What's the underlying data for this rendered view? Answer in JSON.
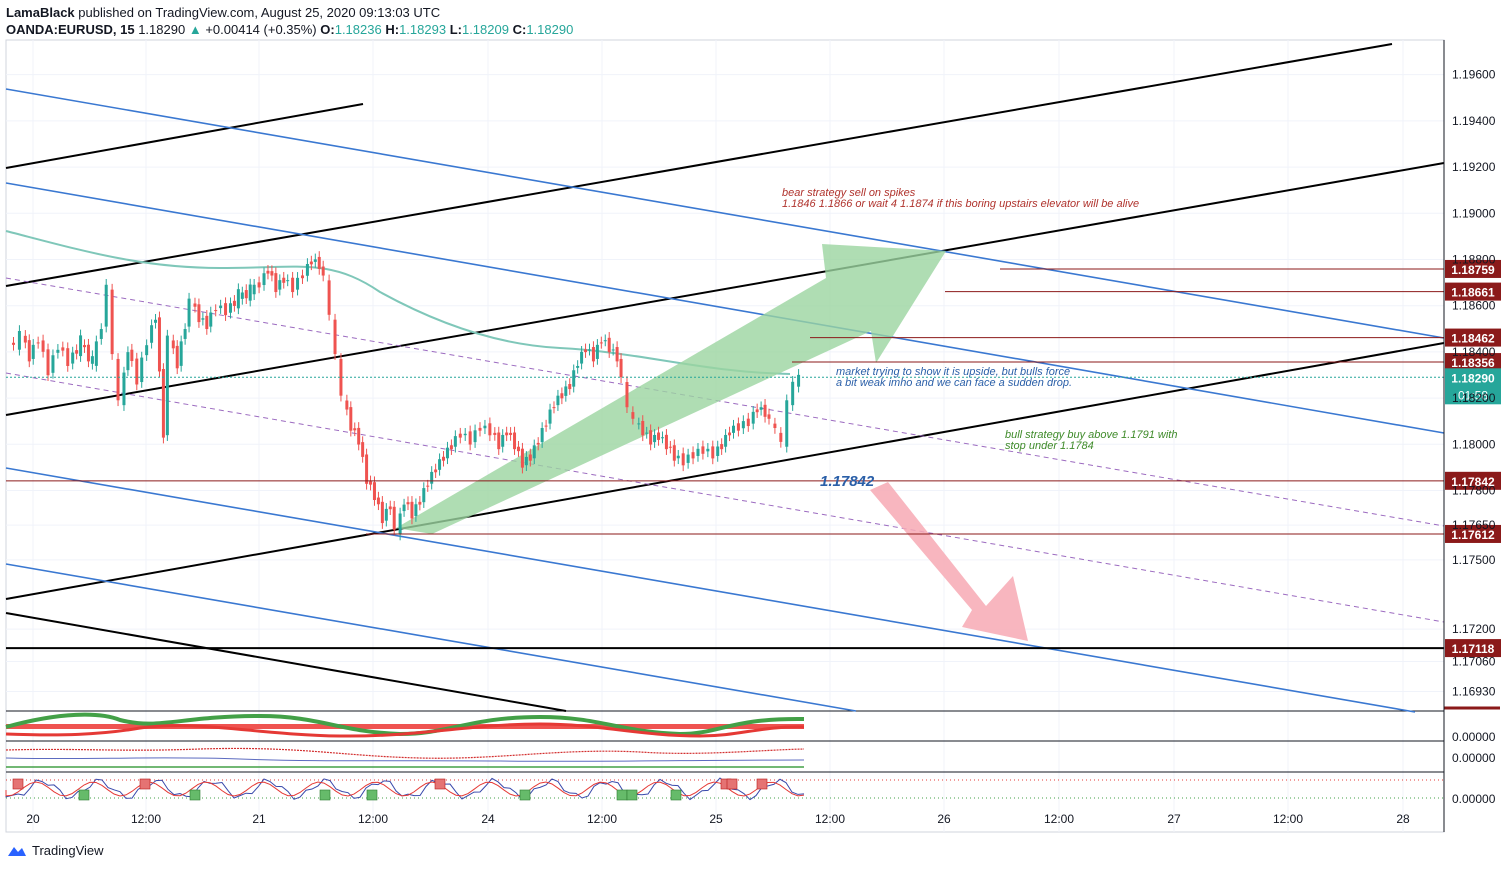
{
  "header": {
    "author": "LamaBlack",
    "published_text": "published on TradingView.com, August 25, 2020 09:13:03 UTC",
    "symbol": "OANDA:EURUSD, 15",
    "last": "1.18290",
    "change": "+0.00414 (+0.35%)",
    "o_label": "O:",
    "o_value": "1.18236",
    "h_label": "H:",
    "h_value": "1.18293",
    "l_label": "L:",
    "l_value": "1.18209",
    "c_label": "C:",
    "c_value": "1.18290",
    "up_arrow": "▲"
  },
  "footer": {
    "brand": "TradingView"
  },
  "colors": {
    "black_line": "#000000",
    "blue_line": "#3a78d1",
    "purple_dash": "#9c6bc0",
    "ma_line": "#7fc7b9",
    "candle_up": "#26a69a",
    "candle_down": "#ef5350",
    "level_line": "#8b1a1a",
    "badge_bg": "#8b1a1a",
    "price_badge_bg": "#26a69a",
    "green_arrow": "#9bd4a0",
    "red_arrow": "#f7a9b4",
    "bear_text": "#b0332d",
    "bull_text": "#3f8b2a",
    "note_text": "#2a5fa8",
    "value_text": "#2a5fa8"
  },
  "chart_data": {
    "type": "candlestick",
    "symbol": "OANDA:EURUSD",
    "interval": "15",
    "ylim": [
      1.1685,
      1.1975
    ],
    "y_ticks": [
      "1.19600",
      "1.19400",
      "1.19200",
      "1.19000",
      "1.18800",
      "1.18600",
      "1.18400",
      "1.18200",
      "1.18000",
      "1.17800",
      "1.17650",
      "1.17500",
      "1.17200",
      "1.17060",
      "1.16930"
    ],
    "x_ticks": [
      "20",
      "12:00",
      "21",
      "12:00",
      "24",
      "12:00",
      "25",
      "12:00",
      "26",
      "12:00",
      "27",
      "12:00",
      "28"
    ],
    "current_price": "1.18290",
    "countdown": "01:58",
    "price_levels": [
      {
        "value": 1.18759,
        "label": "1.18759"
      },
      {
        "value": 1.18661,
        "label": "1.18661"
      },
      {
        "value": 1.18462,
        "label": "1.18462"
      },
      {
        "value": 1.18356,
        "label": "1.18356"
      },
      {
        "value": 1.17842,
        "label": "1.17842"
      },
      {
        "value": 1.17612,
        "label": "1.17612"
      },
      {
        "value": 1.17118,
        "label": "1.17118"
      }
    ],
    "candle_path": [
      [
        0,
        1.1845
      ],
      [
        6,
        1.1842
      ],
      [
        12,
        1.1848
      ],
      [
        20,
        1.1838
      ],
      [
        30,
        1.1846
      ],
      [
        40,
        1.1832
      ],
      [
        50,
        1.1843
      ],
      [
        60,
        1.1836
      ],
      [
        72,
        1.1844
      ],
      [
        84,
        1.1835
      ],
      [
        94,
        1.1852
      ],
      [
        100,
        1.1868
      ],
      [
        106,
        1.1838
      ],
      [
        112,
        1.1818
      ],
      [
        120,
        1.1842
      ],
      [
        130,
        1.1828
      ],
      [
        140,
        1.1845
      ],
      [
        148,
        1.1856
      ],
      [
        156,
        1.1805
      ],
      [
        162,
        1.1846
      ],
      [
        170,
        1.1835
      ],
      [
        178,
        1.1852
      ],
      [
        184,
        1.1862
      ],
      [
        192,
        1.1855
      ],
      [
        200,
        1.1852
      ],
      [
        210,
        1.186
      ],
      [
        220,
        1.1858
      ],
      [
        232,
        1.1864
      ],
      [
        244,
        1.1866
      ],
      [
        254,
        1.187
      ],
      [
        262,
        1.1876
      ],
      [
        270,
        1.1868
      ],
      [
        278,
        1.1872
      ],
      [
        288,
        1.1868
      ],
      [
        298,
        1.1874
      ],
      [
        306,
        1.188
      ],
      [
        314,
        1.1878
      ],
      [
        320,
        1.1872
      ],
      [
        326,
        1.1855
      ],
      [
        332,
        1.1838
      ],
      [
        338,
        1.182
      ],
      [
        346,
        1.1808
      ],
      [
        354,
        1.1802
      ],
      [
        362,
        1.1785
      ],
      [
        370,
        1.1778
      ],
      [
        378,
        1.1768
      ],
      [
        386,
        1.1774
      ],
      [
        392,
        1.1762
      ],
      [
        400,
        1.1776
      ],
      [
        408,
        1.177
      ],
      [
        416,
        1.1776
      ],
      [
        424,
        1.1784
      ],
      [
        432,
        1.179
      ],
      [
        440,
        1.1795
      ],
      [
        448,
        1.18
      ],
      [
        458,
        1.1805
      ],
      [
        468,
        1.1802
      ],
      [
        478,
        1.1808
      ],
      [
        488,
        1.1806
      ],
      [
        496,
        1.18
      ],
      [
        504,
        1.1806
      ],
      [
        512,
        1.18
      ],
      [
        520,
        1.1792
      ],
      [
        528,
        1.1795
      ],
      [
        536,
        1.1802
      ],
      [
        544,
        1.181
      ],
      [
        552,
        1.1818
      ],
      [
        560,
        1.1822
      ],
      [
        568,
        1.1826
      ],
      [
        576,
        1.1836
      ],
      [
        584,
        1.1842
      ],
      [
        592,
        1.1838
      ],
      [
        600,
        1.1846
      ],
      [
        608,
        1.1842
      ],
      [
        616,
        1.1838
      ],
      [
        622,
        1.1828
      ],
      [
        628,
        1.1815
      ],
      [
        634,
        1.181
      ],
      [
        642,
        1.1806
      ],
      [
        650,
        1.1802
      ],
      [
        658,
        1.1804
      ],
      [
        666,
        1.18
      ],
      [
        674,
        1.1795
      ],
      [
        684,
        1.1793
      ],
      [
        694,
        1.1796
      ],
      [
        704,
        1.1798
      ],
      [
        714,
        1.1796
      ],
      [
        722,
        1.18
      ],
      [
        730,
        1.1806
      ],
      [
        740,
        1.1808
      ],
      [
        750,
        1.181
      ],
      [
        758,
        1.1816
      ],
      [
        766,
        1.1814
      ],
      [
        772,
        1.181
      ],
      [
        778,
        1.1806
      ],
      [
        784,
        1.18
      ],
      [
        790,
        1.1818
      ],
      [
        796,
        1.1826
      ],
      [
        802,
        1.1829
      ]
    ],
    "annotations": [
      {
        "kind": "text",
        "color": "bear",
        "lines": [
          "bear strategy sell on spikes",
          "1.1846 1.1866 or wait 4 1.1874 if this boring upstairs elevator will be alive"
        ]
      },
      {
        "kind": "text",
        "color": "note",
        "lines": [
          "market trying to show it is upside, but bulls force",
          "a bit weak imho and we can face a sudden drop."
        ]
      },
      {
        "kind": "text",
        "color": "bull",
        "lines": [
          "bull strategy buy above 1.1791 with",
          "stop under 1.1784"
        ]
      },
      {
        "kind": "value",
        "text": "1.17842"
      }
    ],
    "indicator_axis_labels": [
      "0.00000",
      "0.00000",
      "0.00000"
    ]
  }
}
